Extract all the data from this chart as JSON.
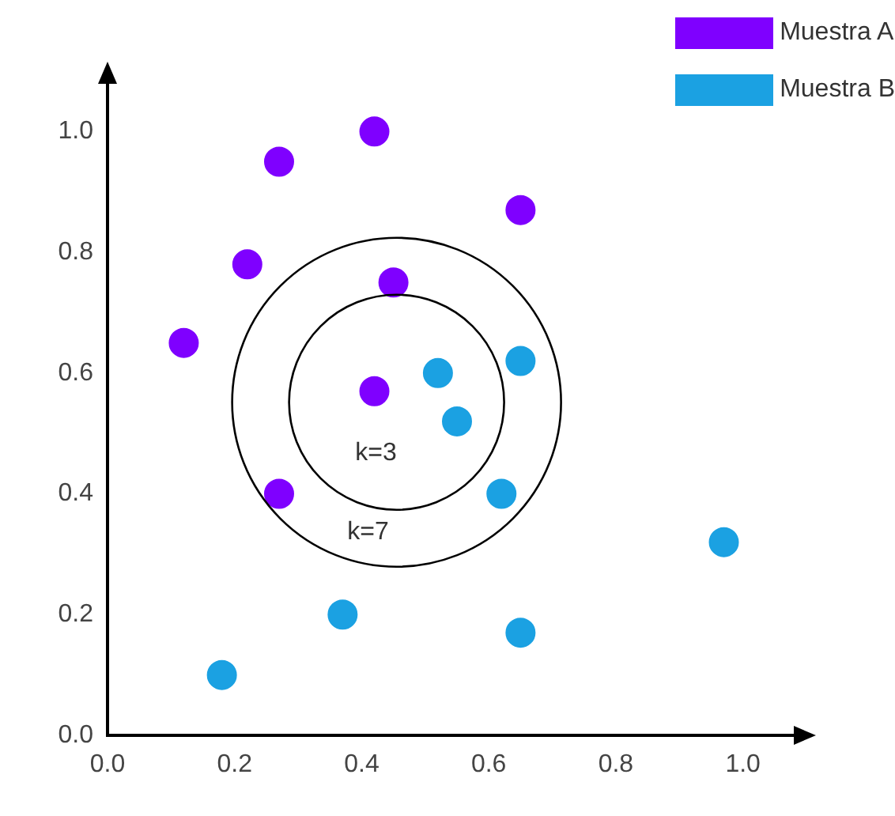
{
  "chart_data": {
    "type": "scatter",
    "marker": "circle",
    "legend": "top right",
    "grid": false,
    "xlim": [
      0,
      1.1
    ],
    "ylim": [
      0,
      1.1
    ],
    "xticks": [
      {
        "value": 0,
        "label": "0.0"
      },
      {
        "value": 0.2,
        "label": "0.2"
      },
      {
        "value": 0.4,
        "label": "0.4"
      },
      {
        "value": 0.6,
        "label": "0.6"
      },
      {
        "value": 0.8,
        "label": "0.8"
      },
      {
        "value": 1,
        "label": "1.0"
      }
    ],
    "yticks": [
      {
        "value": 0,
        "label": "0.0"
      },
      {
        "value": 0.2,
        "label": "0.2"
      },
      {
        "value": 0.4,
        "label": "0.4"
      },
      {
        "value": 0.6,
        "label": "0.6"
      },
      {
        "value": 0.8,
        "label": "0.8"
      },
      {
        "value": 1,
        "label": "1.0"
      }
    ],
    "series": [
      {
        "name": "Muestra A",
        "color": "#7f00ff",
        "x": [
          0.27,
          0.42,
          0.65,
          0.22,
          0.45,
          0.12,
          0.42,
          0.27
        ],
        "values": [
          0.95,
          1.0,
          0.87,
          0.78,
          0.75,
          0.65,
          0.57,
          0.4
        ]
      },
      {
        "name": "Muestra B",
        "color": "#1ba1e2",
        "x": [
          0.52,
          0.65,
          0.55,
          0.62,
          0.97,
          0.37,
          0.65,
          0.18
        ],
        "values": [
          0.6,
          0.62,
          0.52,
          0.4,
          0.32,
          0.2,
          0.17,
          0.1
        ]
      }
    ],
    "annotations": [
      "k=3",
      "k=7"
    ]
  }
}
